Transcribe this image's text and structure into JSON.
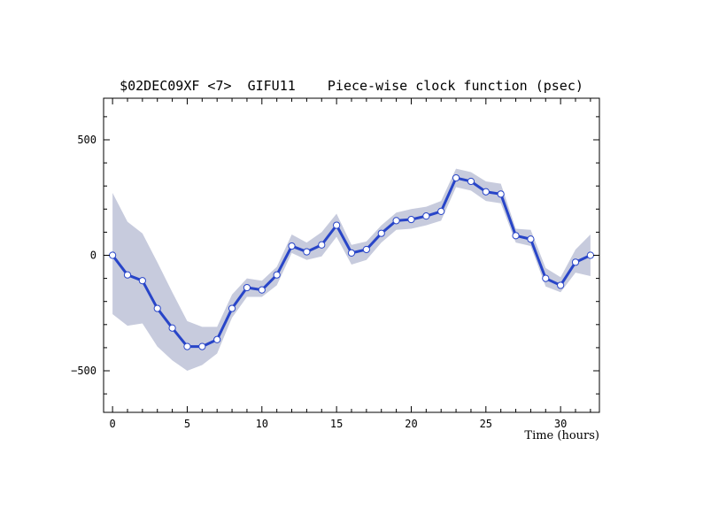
{
  "colors": {
    "series": "#2845c8",
    "band": "#c7cbdd",
    "marker_fill": "#ffffff",
    "axis": "#000000",
    "background": "#ffffff"
  },
  "chart_data": {
    "type": "line",
    "title": "$02DEC09XF <7>  GIFU11    Piece-wise clock function (psec)",
    "xlabel": "Time (hours)",
    "ylabel": "",
    "xlim": [
      -0.6,
      32.6
    ],
    "ylim": [
      -680,
      680
    ],
    "x_ticks": [
      0,
      5,
      10,
      15,
      20,
      25,
      30
    ],
    "y_ticks": [
      -500,
      0,
      500
    ],
    "grid": false,
    "legend": "none",
    "series": [
      {
        "x": [
          0,
          1,
          2,
          3,
          4,
          5,
          6,
          7,
          8,
          9,
          10,
          11,
          12,
          13,
          14,
          15,
          16,
          17,
          18,
          19,
          20,
          21,
          22,
          23,
          24,
          25,
          26,
          27,
          28,
          29,
          30,
          31,
          32
        ],
        "values": [
          0,
          -85,
          -110,
          -230,
          -315,
          -395,
          -395,
          -365,
          -230,
          -140,
          -150,
          -85,
          40,
          15,
          45,
          130,
          10,
          25,
          95,
          150,
          155,
          170,
          190,
          335,
          320,
          275,
          265,
          85,
          70,
          -100,
          -130,
          -30,
          0
        ],
        "upper": [
          270,
          145,
          95,
          -30,
          -160,
          -285,
          -310,
          -310,
          -170,
          -100,
          -110,
          -50,
          90,
          55,
          100,
          180,
          45,
          60,
          130,
          185,
          200,
          210,
          235,
          375,
          360,
          320,
          310,
          115,
          110,
          -55,
          -95,
          25,
          90
        ],
        "lower": [
          -255,
          -305,
          -295,
          -395,
          -455,
          -500,
          -475,
          -425,
          -270,
          -180,
          -180,
          -130,
          10,
          -20,
          -5,
          80,
          -40,
          -20,
          55,
          110,
          115,
          130,
          150,
          295,
          280,
          235,
          225,
          55,
          40,
          -135,
          -160,
          -75,
          -90
        ]
      }
    ]
  }
}
